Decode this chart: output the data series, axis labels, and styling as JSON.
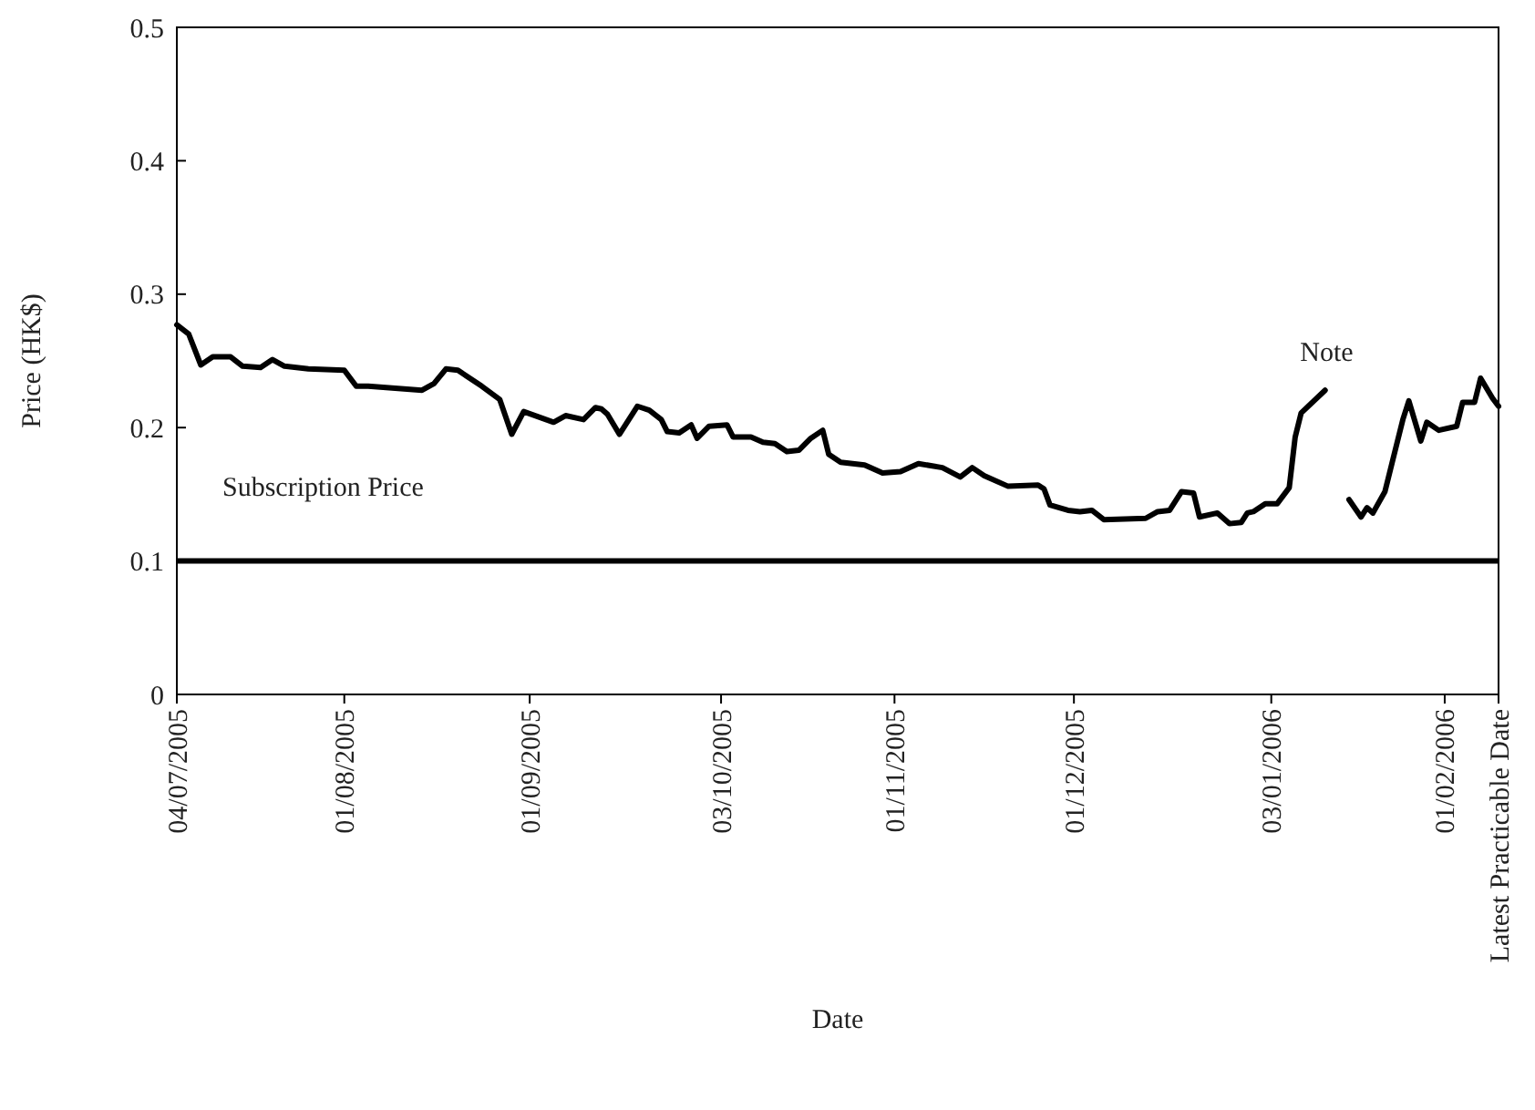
{
  "chart_data": {
    "type": "line",
    "xlabel": "Date",
    "ylabel": "Price (HK$)",
    "x": [
      "2005-07-04",
      "2005-07-06",
      "2005-07-08",
      "2005-07-10",
      "2005-07-13",
      "2005-07-15",
      "2005-07-18",
      "2005-07-20",
      "2005-07-22",
      "2005-07-26",
      "2005-08-01",
      "2005-08-03",
      "2005-08-05",
      "2005-08-14",
      "2005-08-16",
      "2005-08-18",
      "2005-08-20",
      "2005-08-24",
      "2005-08-27",
      "2005-08-29",
      "2005-08-31",
      "2005-09-05",
      "2005-09-07",
      "2005-09-10",
      "2005-09-12",
      "2005-09-13",
      "2005-09-14",
      "2005-09-16",
      "2005-09-19",
      "2005-09-21",
      "2005-09-23",
      "2005-09-24",
      "2005-09-26",
      "2005-09-28",
      "2005-09-29",
      "2005-10-01",
      "2005-10-04",
      "2005-10-05",
      "2005-10-08",
      "2005-10-10",
      "2005-10-12",
      "2005-10-14",
      "2005-10-16",
      "2005-10-18",
      "2005-10-20",
      "2005-10-21",
      "2005-10-23",
      "2005-10-27",
      "2005-10-30",
      "2005-11-02",
      "2005-11-05",
      "2005-11-09",
      "2005-11-12",
      "2005-11-14",
      "2005-11-16",
      "2005-11-20",
      "2005-11-25",
      "2005-11-26",
      "2005-11-27",
      "2005-11-30",
      "2005-12-02",
      "2005-12-04",
      "2005-12-06",
      "2005-12-13",
      "2005-12-15",
      "2005-12-17",
      "2005-12-19",
      "2005-12-21",
      "2005-12-22",
      "2005-12-25",
      "2005-12-27",
      "2005-12-29",
      "2005-12-30",
      "2005-12-31",
      "2006-01-02",
      "2006-01-04",
      "2006-01-06",
      "2006-01-07",
      "2006-01-08",
      "2006-01-12",
      "2006-01-14",
      "2006-01-16",
      "2006-01-18",
      "2006-01-19",
      "2006-01-20",
      "2006-01-22",
      "2006-01-25",
      "2006-01-26",
      "2006-01-28",
      "2006-01-29",
      "2006-01-31",
      "2006-02-03",
      "2006-02-04",
      "2006-02-06",
      "2006-02-07",
      "2006-02-09",
      "2006-02-10"
    ],
    "series": [
      {
        "color": "#000000",
        "values": [
          0.277,
          0.27,
          0.247,
          0.253,
          0.253,
          0.246,
          0.245,
          0.251,
          0.246,
          0.244,
          0.243,
          0.231,
          0.231,
          0.228,
          0.233,
          0.244,
          0.243,
          0.231,
          0.221,
          0.195,
          0.212,
          0.204,
          0.209,
          0.206,
          0.215,
          0.214,
          0.21,
          0.195,
          0.216,
          0.213,
          0.206,
          0.197,
          0.196,
          0.202,
          0.192,
          0.201,
          0.202,
          0.193,
          0.193,
          0.189,
          0.188,
          0.182,
          0.183,
          0.192,
          0.198,
          0.18,
          0.174,
          0.172,
          0.166,
          0.167,
          0.173,
          0.17,
          0.163,
          0.17,
          0.164,
          0.156,
          0.157,
          0.154,
          0.142,
          0.138,
          0.137,
          0.138,
          0.131,
          0.132,
          0.137,
          0.138,
          0.152,
          0.151,
          0.133,
          0.136,
          0.128,
          0.129,
          0.136,
          0.137,
          0.143,
          0.143,
          0.155,
          0.193,
          0.211,
          0.228,
          null,
          0.146,
          0.133,
          0.14,
          0.136,
          0.152,
          0.206,
          0.22,
          0.19,
          0.204,
          0.198,
          0.201,
          0.219,
          0.219,
          0.237,
          0.222,
          0.216
        ]
      }
    ],
    "xlim": [
      "2005-07-04",
      "2006-02-10"
    ],
    "xticks": [
      {
        "value": "2005-07-04",
        "label": "04/07/2005"
      },
      {
        "value": "2005-08-01",
        "label": "01/08/2005"
      },
      {
        "value": "2005-09-01",
        "label": "01/09/2005"
      },
      {
        "value": "2005-10-03",
        "label": "03/10/2005"
      },
      {
        "value": "2005-11-01",
        "label": "01/11/2005"
      },
      {
        "value": "2005-12-01",
        "label": "01/12/2005"
      },
      {
        "value": "2006-01-03",
        "label": "03/01/2006"
      },
      {
        "value": "2006-02-01",
        "label": "01/02/2006"
      },
      {
        "value": "2006-02-10",
        "label": "Latest Practicable Date"
      }
    ],
    "ylim": [
      0,
      0.5
    ],
    "yticks": [
      0,
      0.1,
      0.2,
      0.3,
      0.4,
      0.5
    ],
    "ref_lines": [
      {
        "axis": "y",
        "value": 0.1,
        "label": "Subscription Price",
        "color": "#000000"
      }
    ],
    "annotations": [
      "Note"
    ],
    "grid": false
  }
}
